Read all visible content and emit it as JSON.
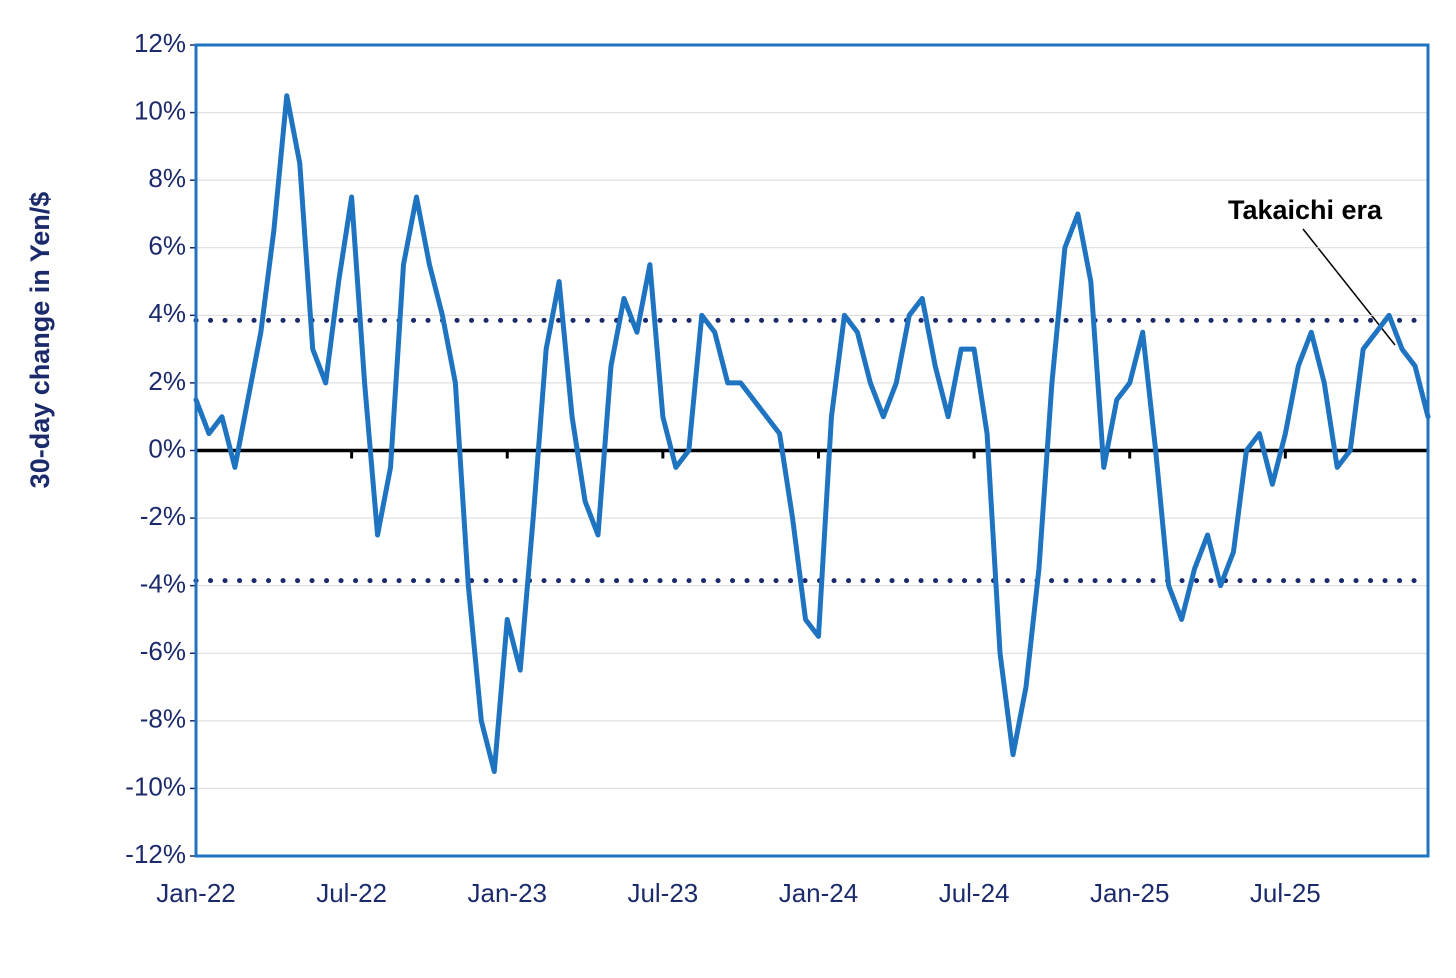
{
  "chart_data": {
    "type": "line",
    "y_label": "30-day change in Yen/$",
    "annotation": "Takaichi era",
    "categories": [
      "Jan-22",
      null,
      null,
      null,
      null,
      null,
      null,
      null,
      null,
      null,
      null,
      null,
      "Jul-22",
      null,
      null,
      null,
      null,
      null,
      null,
      null,
      null,
      null,
      null,
      null,
      "Jan-23",
      null,
      null,
      null,
      null,
      null,
      null,
      null,
      null,
      null,
      null,
      null,
      "Jul-23",
      null,
      null,
      null,
      null,
      null,
      null,
      null,
      null,
      null,
      null,
      null,
      "Jan-24",
      null,
      null,
      null,
      null,
      null,
      null,
      null,
      null,
      null,
      null,
      null,
      "Jul-24",
      null,
      null,
      null,
      null,
      null,
      null,
      null,
      null,
      null,
      null,
      null,
      "Jan-25",
      null,
      null,
      null,
      null,
      null,
      null,
      null,
      null,
      null,
      null,
      null,
      "Jul-25",
      null,
      null,
      null,
      null,
      null,
      null,
      null,
      null,
      null,
      null,
      null
    ],
    "series": [
      {
        "color": "#1f74c2",
        "values": [
          1.5,
          0.5,
          1.0,
          -0.5,
          1.5,
          3.5,
          6.5,
          10.5,
          8.5,
          3.0,
          2.0,
          5.0,
          7.5,
          2.0,
          -2.5,
          -0.5,
          5.5,
          7.5,
          5.5,
          4.0,
          2.0,
          -4.0,
          -8.0,
          -9.5,
          -5.0,
          -6.5,
          -2.0,
          3.0,
          5.0,
          1.0,
          -1.5,
          -2.5,
          2.5,
          4.5,
          3.5,
          5.5,
          1.0,
          -0.5,
          0.0,
          4.0,
          3.5,
          2.0,
          2.0,
          1.5,
          1.0,
          0.5,
          -2.0,
          -5.0,
          -5.5,
          1.0,
          4.0,
          3.5,
          2.0,
          1.0,
          2.0,
          4.0,
          4.5,
          2.5,
          1.0,
          3.0,
          3.0,
          0.5,
          -6.0,
          -9.0,
          -7.0,
          -3.5,
          2.0,
          6.0,
          7.0,
          5.0,
          -0.5,
          1.5,
          2.0,
          3.5,
          0.0,
          -4.0,
          -5.0,
          -3.5,
          -2.5,
          -4.0,
          -3.0,
          0.0,
          0.5,
          -1.0,
          0.5,
          2.5,
          3.5,
          2.0,
          -0.5,
          0.0,
          3.0,
          3.5,
          4.0,
          3.0,
          2.5,
          1.0
        ]
      }
    ],
    "reference_lines": [
      3.85,
      -3.85
    ],
    "ylim": [
      -12,
      12
    ],
    "yticks": [
      {
        "value": 12,
        "label": "12%"
      },
      {
        "value": 10,
        "label": "10%"
      },
      {
        "value": 8,
        "label": "8%"
      },
      {
        "value": 6,
        "label": "6%"
      },
      {
        "value": 4,
        "label": "4%"
      },
      {
        "value": 2,
        "label": "2%"
      },
      {
        "value": 0,
        "label": "0%"
      },
      {
        "value": -2,
        "label": "-2%"
      },
      {
        "value": -4,
        "label": "-4%"
      },
      {
        "value": -6,
        "label": "-6%"
      },
      {
        "value": -8,
        "label": "-8%"
      },
      {
        "value": -10,
        "label": "-10%"
      },
      {
        "value": -12,
        "label": "-12%"
      }
    ],
    "grid": true
  }
}
